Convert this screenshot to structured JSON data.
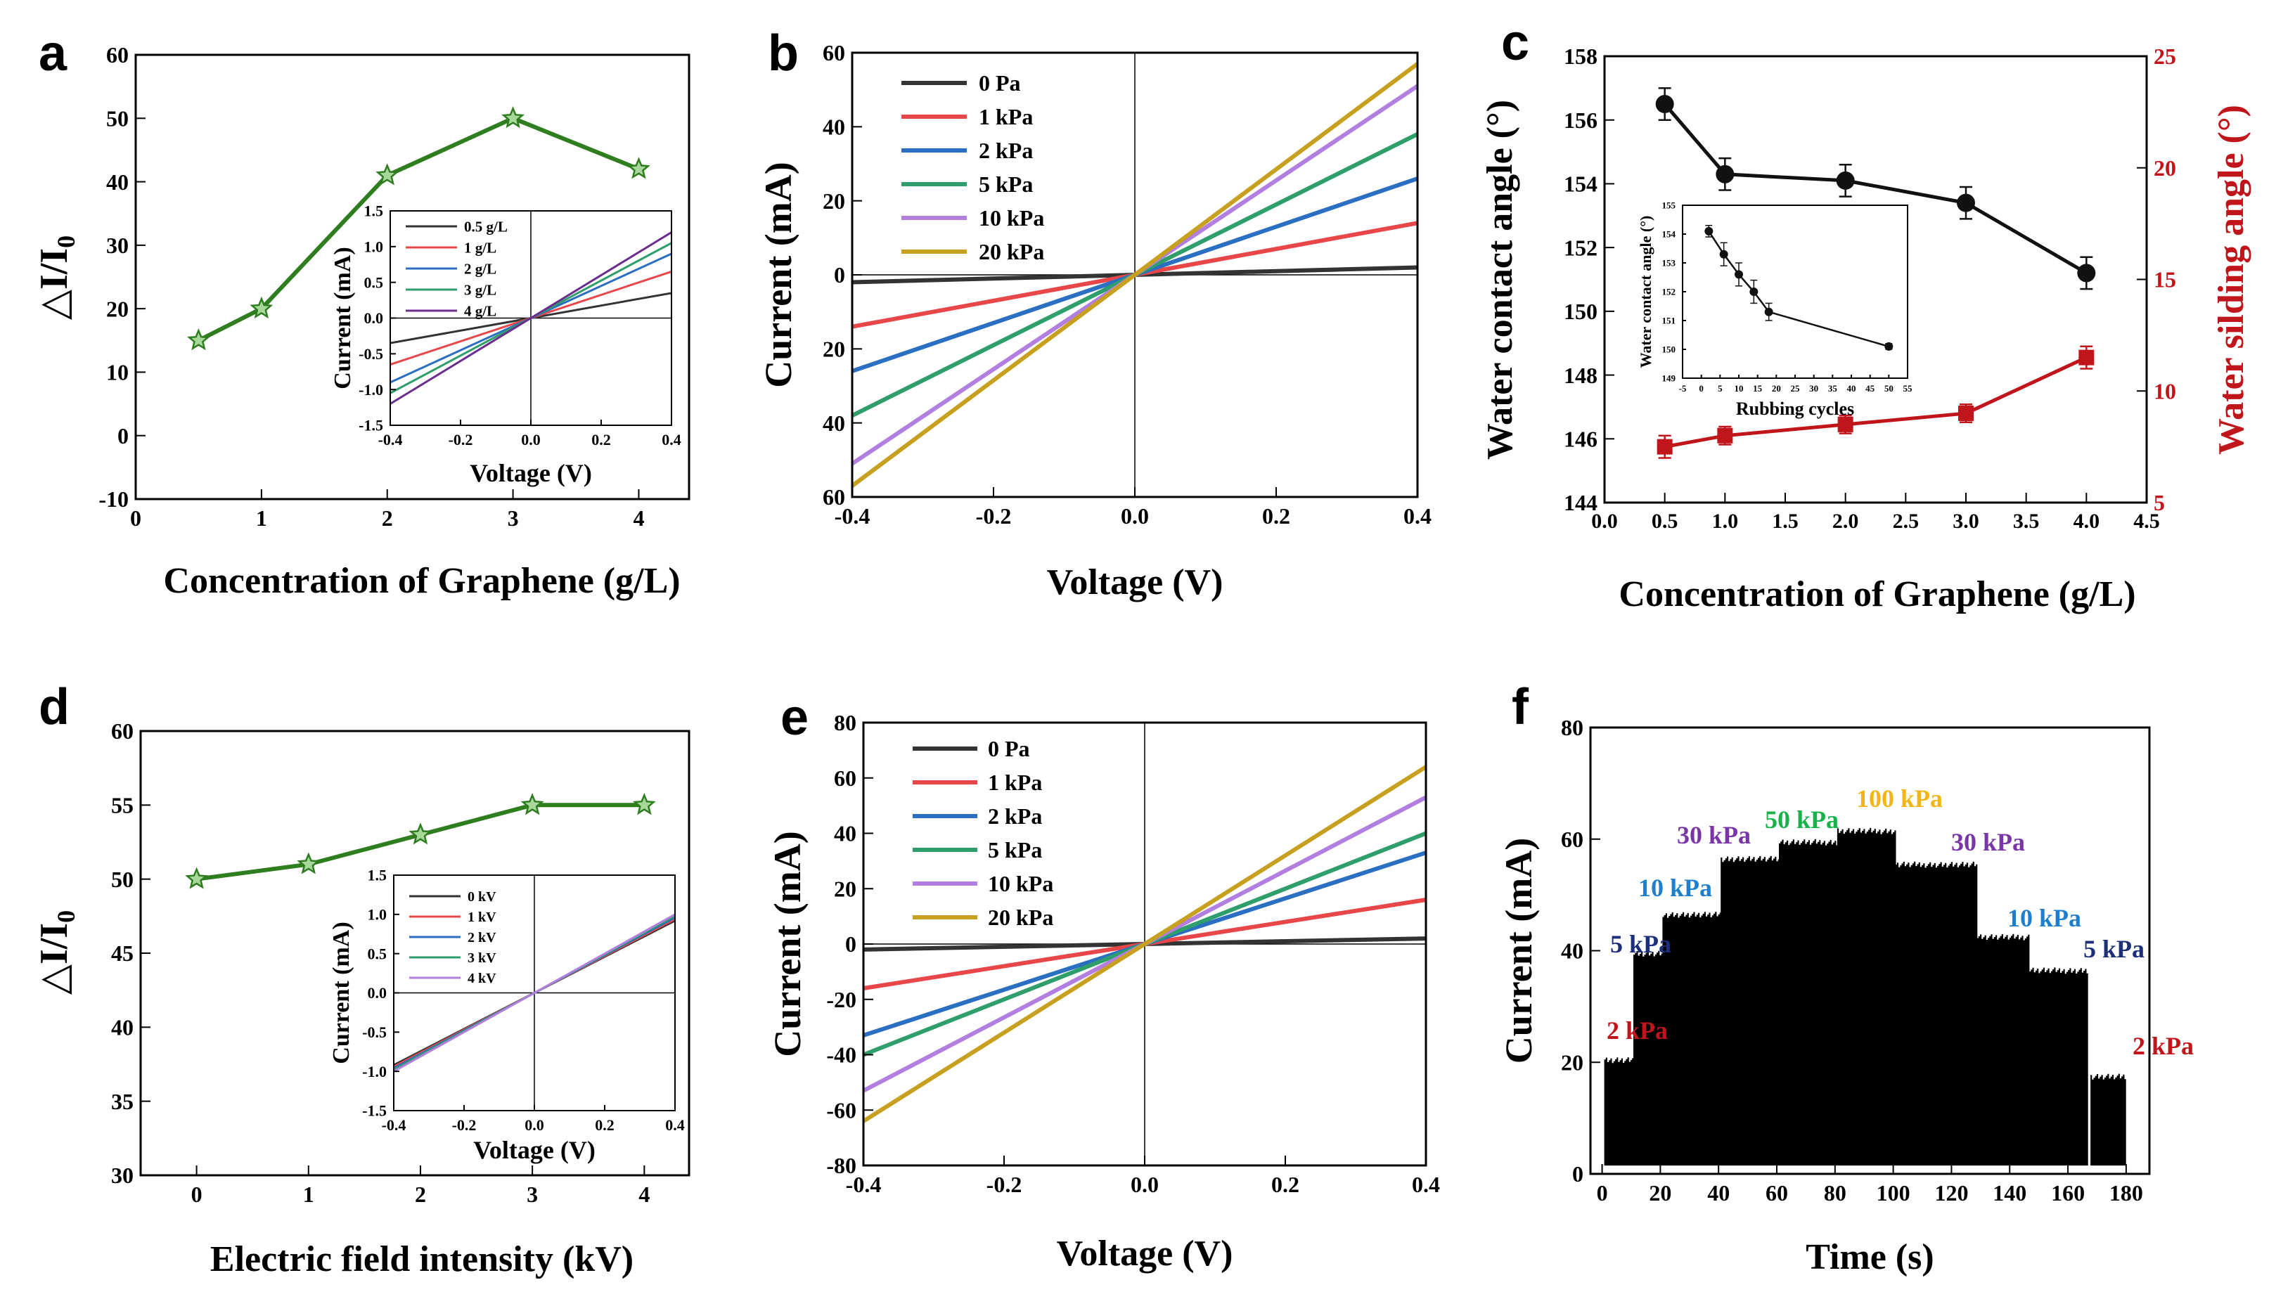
{
  "chart_data": [
    {
      "panel": "a",
      "type": "line",
      "title": "",
      "xlabel": "Concentration of Graphene (g/L)",
      "ylabel": "△I/I0",
      "xlim": [
        0,
        4.4
      ],
      "ylim": [
        -10,
        60
      ],
      "xticks": [
        0,
        1,
        2,
        3,
        4
      ],
      "yticks": [
        -10,
        0,
        10,
        20,
        30,
        40,
        50,
        60
      ],
      "grid": false,
      "series": [
        {
          "color": "#2e7d1f",
          "marker": "star",
          "x": [
            0.5,
            1,
            2,
            3,
            4
          ],
          "y": [
            15,
            20,
            41,
            50,
            42
          ]
        }
      ],
      "inset": {
        "type": "line",
        "xlabel": "Voltage (V)",
        "ylabel": "Current (mA)",
        "xlim": [
          -0.4,
          0.4
        ],
        "ylim": [
          -1.5,
          1.5
        ],
        "xticks": [
          "-0.4",
          "-0.2",
          "0.0",
          "0.2",
          "0.4"
        ],
        "yticks": [
          "-1.5",
          "-1.0",
          "-0.5",
          "0.0",
          "0.5",
          "1.0",
          "1.5"
        ],
        "legend_loc": "top-left",
        "series": [
          {
            "name": "0.5 g/L",
            "color": "#333333",
            "x": [
              -0.4,
              0.4
            ],
            "y": [
              -0.35,
              0.35
            ]
          },
          {
            "name": "1 g/L",
            "color": "#e8474a",
            "x": [
              -0.4,
              0.4
            ],
            "y": [
              -0.65,
              0.65
            ]
          },
          {
            "name": "2 g/L",
            "color": "#2a6fc1",
            "x": [
              -0.4,
              0.4
            ],
            "y": [
              -0.9,
              0.9
            ]
          },
          {
            "name": "3 g/L",
            "color": "#2e9e6a",
            "x": [
              -0.4,
              0.4
            ],
            "y": [
              -1.05,
              1.05
            ]
          },
          {
            "name": "4 g/L",
            "color": "#6a2d8f",
            "x": [
              -0.4,
              0.4
            ],
            "y": [
              -1.2,
              1.2
            ]
          }
        ]
      }
    },
    {
      "panel": "b",
      "type": "line",
      "title": "",
      "xlabel": "Voltage (V)",
      "ylabel": "Current (mA)",
      "xlim": [
        -0.4,
        0.4
      ],
      "ylim": [
        -60,
        60
      ],
      "xticks": [
        "-0.4",
        "-0.2",
        "0.0",
        "0.2",
        "0.4"
      ],
      "yticks": [
        "60",
        "40",
        "20",
        "0",
        "20",
        "40",
        "60"
      ],
      "legend_loc": "top-left",
      "series": [
        {
          "name": "0 Pa",
          "color": "#333333",
          "x": [
            -0.4,
            0.4
          ],
          "y": [
            -2,
            2
          ]
        },
        {
          "name": "1 kPa",
          "color": "#e8474a",
          "x": [
            -0.4,
            0.4
          ],
          "y": [
            -14,
            14
          ]
        },
        {
          "name": "2 kPa",
          "color": "#2a6fc1",
          "x": [
            -0.4,
            0.4
          ],
          "y": [
            -26,
            26
          ]
        },
        {
          "name": "5 kPa",
          "color": "#2e9e6a",
          "x": [
            -0.4,
            0.4
          ],
          "y": [
            -38,
            38
          ]
        },
        {
          "name": "10 kPa",
          "color": "#b27fe0",
          "x": [
            -0.4,
            0.4
          ],
          "y": [
            -51,
            51
          ]
        },
        {
          "name": "20 kPa",
          "color": "#c8a020",
          "x": [
            -0.4,
            0.4
          ],
          "y": [
            -57,
            57
          ]
        }
      ]
    },
    {
      "panel": "c",
      "type": "line",
      "title": "",
      "xlabel": "Concentration of Graphene (g/L)",
      "ylabel": "Water contact angle (°)",
      "ylabel_right": "Water silding angle (°)",
      "xlim": [
        0,
        4.5
      ],
      "ylim": [
        144,
        158
      ],
      "ylim_right": [
        5,
        25
      ],
      "xticks": [
        "0.0",
        "0.5",
        "1.0",
        "1.5",
        "2.0",
        "2.5",
        "3.0",
        "3.5",
        "4.0",
        "4.5"
      ],
      "yticks": [
        144,
        146,
        148,
        150,
        152,
        154,
        156,
        158
      ],
      "yticks_right": [
        5,
        10,
        15,
        20,
        25
      ],
      "series": [
        {
          "axis": "left",
          "color": "#111111",
          "marker": "circle",
          "x": [
            0.5,
            1,
            2,
            3,
            4
          ],
          "y": [
            156.5,
            154.3,
            154.1,
            153.4,
            151.2
          ],
          "err": [
            0.5,
            0.5,
            0.5,
            0.5,
            0.5
          ]
        },
        {
          "axis": "right",
          "color": "#c0151b",
          "marker": "square",
          "x": [
            0.5,
            1,
            2,
            3,
            4
          ],
          "y": [
            7.5,
            8.0,
            8.5,
            9.0,
            11.5
          ],
          "err": [
            0.5,
            0.4,
            0.4,
            0.4,
            0.5
          ]
        }
      ],
      "inset": {
        "type": "line",
        "xlabel": "Rubbing cycles",
        "ylabel": "Water contact angle (°)",
        "xlim": [
          -5,
          55
        ],
        "ylim": [
          149,
          155
        ],
        "xticks": [
          "-5",
          "0",
          "5",
          "10",
          "15",
          "20",
          "25",
          "30",
          "35",
          "40",
          "45",
          "50",
          "55"
        ],
        "yticks": [
          "149",
          "150",
          "151",
          "152",
          "153",
          "154",
          "155"
        ],
        "series": [
          {
            "color": "#111111",
            "marker": "circle",
            "x": [
              2,
              6,
              10,
              14,
              18,
              50
            ],
            "y": [
              154.1,
              153.3,
              152.6,
              152.0,
              151.3,
              150.1
            ],
            "err": [
              0.2,
              0.4,
              0.4,
              0.4,
              0.3,
              0.1
            ]
          }
        ]
      }
    },
    {
      "panel": "d",
      "type": "line",
      "title": "",
      "xlabel": "Electric field intensity (kV)",
      "ylabel": "△I/I0",
      "xlim": [
        -0.5,
        4.4
      ],
      "ylim": [
        30,
        60
      ],
      "xticks": [
        0,
        1,
        2,
        3,
        4
      ],
      "yticks": [
        30,
        35,
        40,
        45,
        50,
        55,
        60
      ],
      "series": [
        {
          "color": "#2e7d1f",
          "marker": "star",
          "x": [
            0,
            1,
            2,
            3,
            4
          ],
          "y": [
            50,
            51,
            53,
            55,
            55
          ]
        }
      ],
      "inset": {
        "type": "line",
        "xlabel": "Voltage (V)",
        "ylabel": "Current (mA)",
        "xlim": [
          -0.4,
          0.4
        ],
        "ylim": [
          -1.5,
          1.5
        ],
        "xticks": [
          "-0.4",
          "-0.2",
          "0.0",
          "0.2",
          "0.4"
        ],
        "yticks": [
          "-1.5",
          "-1.0",
          "-0.5",
          "0.0",
          "0.5",
          "1.0",
          "1.5"
        ],
        "legend_loc": "top-left",
        "series": [
          {
            "name": "0 kV",
            "color": "#333333",
            "x": [
              -0.4,
              0.4
            ],
            "y": [
              -0.92,
              0.92
            ]
          },
          {
            "name": "1 kV",
            "color": "#e8474a",
            "x": [
              -0.4,
              0.4
            ],
            "y": [
              -0.94,
              0.94
            ]
          },
          {
            "name": "2 kV",
            "color": "#2a6fc1",
            "x": [
              -0.4,
              0.4
            ],
            "y": [
              -0.96,
              0.96
            ]
          },
          {
            "name": "3 kV",
            "color": "#2e9e6a",
            "x": [
              -0.4,
              0.4
            ],
            "y": [
              -0.98,
              0.98
            ]
          },
          {
            "name": "4 kV",
            "color": "#b27fe0",
            "x": [
              -0.4,
              0.4
            ],
            "y": [
              -1.0,
              1.0
            ]
          }
        ]
      }
    },
    {
      "panel": "e",
      "type": "line",
      "title": "",
      "xlabel": "Voltage (V)",
      "ylabel": "Current (mA)",
      "xlim": [
        -0.4,
        0.4
      ],
      "ylim": [
        -80,
        80
      ],
      "xticks": [
        "-0.4",
        "-0.2",
        "0.0",
        "0.2",
        "0.4"
      ],
      "yticks": [
        "-80",
        "-60",
        "-40",
        "-20",
        "0",
        "20",
        "40",
        "60",
        "80"
      ],
      "legend_loc": "top-left",
      "series": [
        {
          "name": "0 Pa",
          "color": "#333333",
          "x": [
            -0.4,
            0.4
          ],
          "y": [
            -2,
            2
          ]
        },
        {
          "name": "1 kPa",
          "color": "#e8474a",
          "x": [
            -0.4,
            0.4
          ],
          "y": [
            -16,
            16
          ]
        },
        {
          "name": "2 kPa",
          "color": "#2a6fc1",
          "x": [
            -0.4,
            0.4
          ],
          "y": [
            -33,
            33
          ]
        },
        {
          "name": "5 kPa",
          "color": "#2e9e6a",
          "x": [
            -0.4,
            0.4
          ],
          "y": [
            -40,
            40
          ]
        },
        {
          "name": "10 kPa",
          "color": "#b27fe0",
          "x": [
            -0.4,
            0.4
          ],
          "y": [
            -53,
            53
          ]
        },
        {
          "name": "20 kPa",
          "color": "#c8a020",
          "x": [
            -0.4,
            0.4
          ],
          "y": [
            -64,
            64
          ]
        }
      ]
    },
    {
      "panel": "f",
      "type": "area",
      "title": "",
      "xlabel": "Time (s)",
      "ylabel": "Current (mA)",
      "xlim": [
        -4,
        188
      ],
      "ylim": [
        0,
        80
      ],
      "xticks": [
        0,
        20,
        40,
        60,
        80,
        100,
        120,
        140,
        160,
        180
      ],
      "yticks": [
        0,
        20,
        40,
        60,
        80
      ],
      "signal_color": "#000000",
      "segments": [
        {
          "label": "2 kPa",
          "color": "#c0151b",
          "x_start": 1,
          "x_end": 11,
          "peak": 21
        },
        {
          "label": "5 kPa",
          "color": "#1b2f7a",
          "x_start": 11,
          "x_end": 21,
          "peak": 40
        },
        {
          "label": "10 kPa",
          "color": "#1d7fd0",
          "x_start": 21,
          "x_end": 41,
          "peak": 47
        },
        {
          "label": "30 kPa",
          "color": "#7a35a8",
          "x_start": 41,
          "x_end": 61,
          "peak": 57
        },
        {
          "label": "50 kPa",
          "color": "#18b24a",
          "x_start": 61,
          "x_end": 81,
          "peak": 60
        },
        {
          "label": "100 kPa",
          "color": "#f2b515",
          "x_start": 81,
          "x_end": 101,
          "peak": 62
        },
        {
          "label": "30 kPa",
          "color": "#7a35a8",
          "x_start": 101,
          "x_end": 129,
          "peak": 56
        },
        {
          "label": "10 kPa",
          "color": "#1d7fd0",
          "x_start": 129,
          "x_end": 147,
          "peak": 43
        },
        {
          "label": "5 kPa",
          "color": "#1b2f7a",
          "x_start": 147,
          "x_end": 167,
          "peak": 37
        },
        {
          "label": "2 kPa",
          "color": "#c0151b",
          "x_start": 168,
          "x_end": 180,
          "peak": 18
        }
      ]
    }
  ]
}
